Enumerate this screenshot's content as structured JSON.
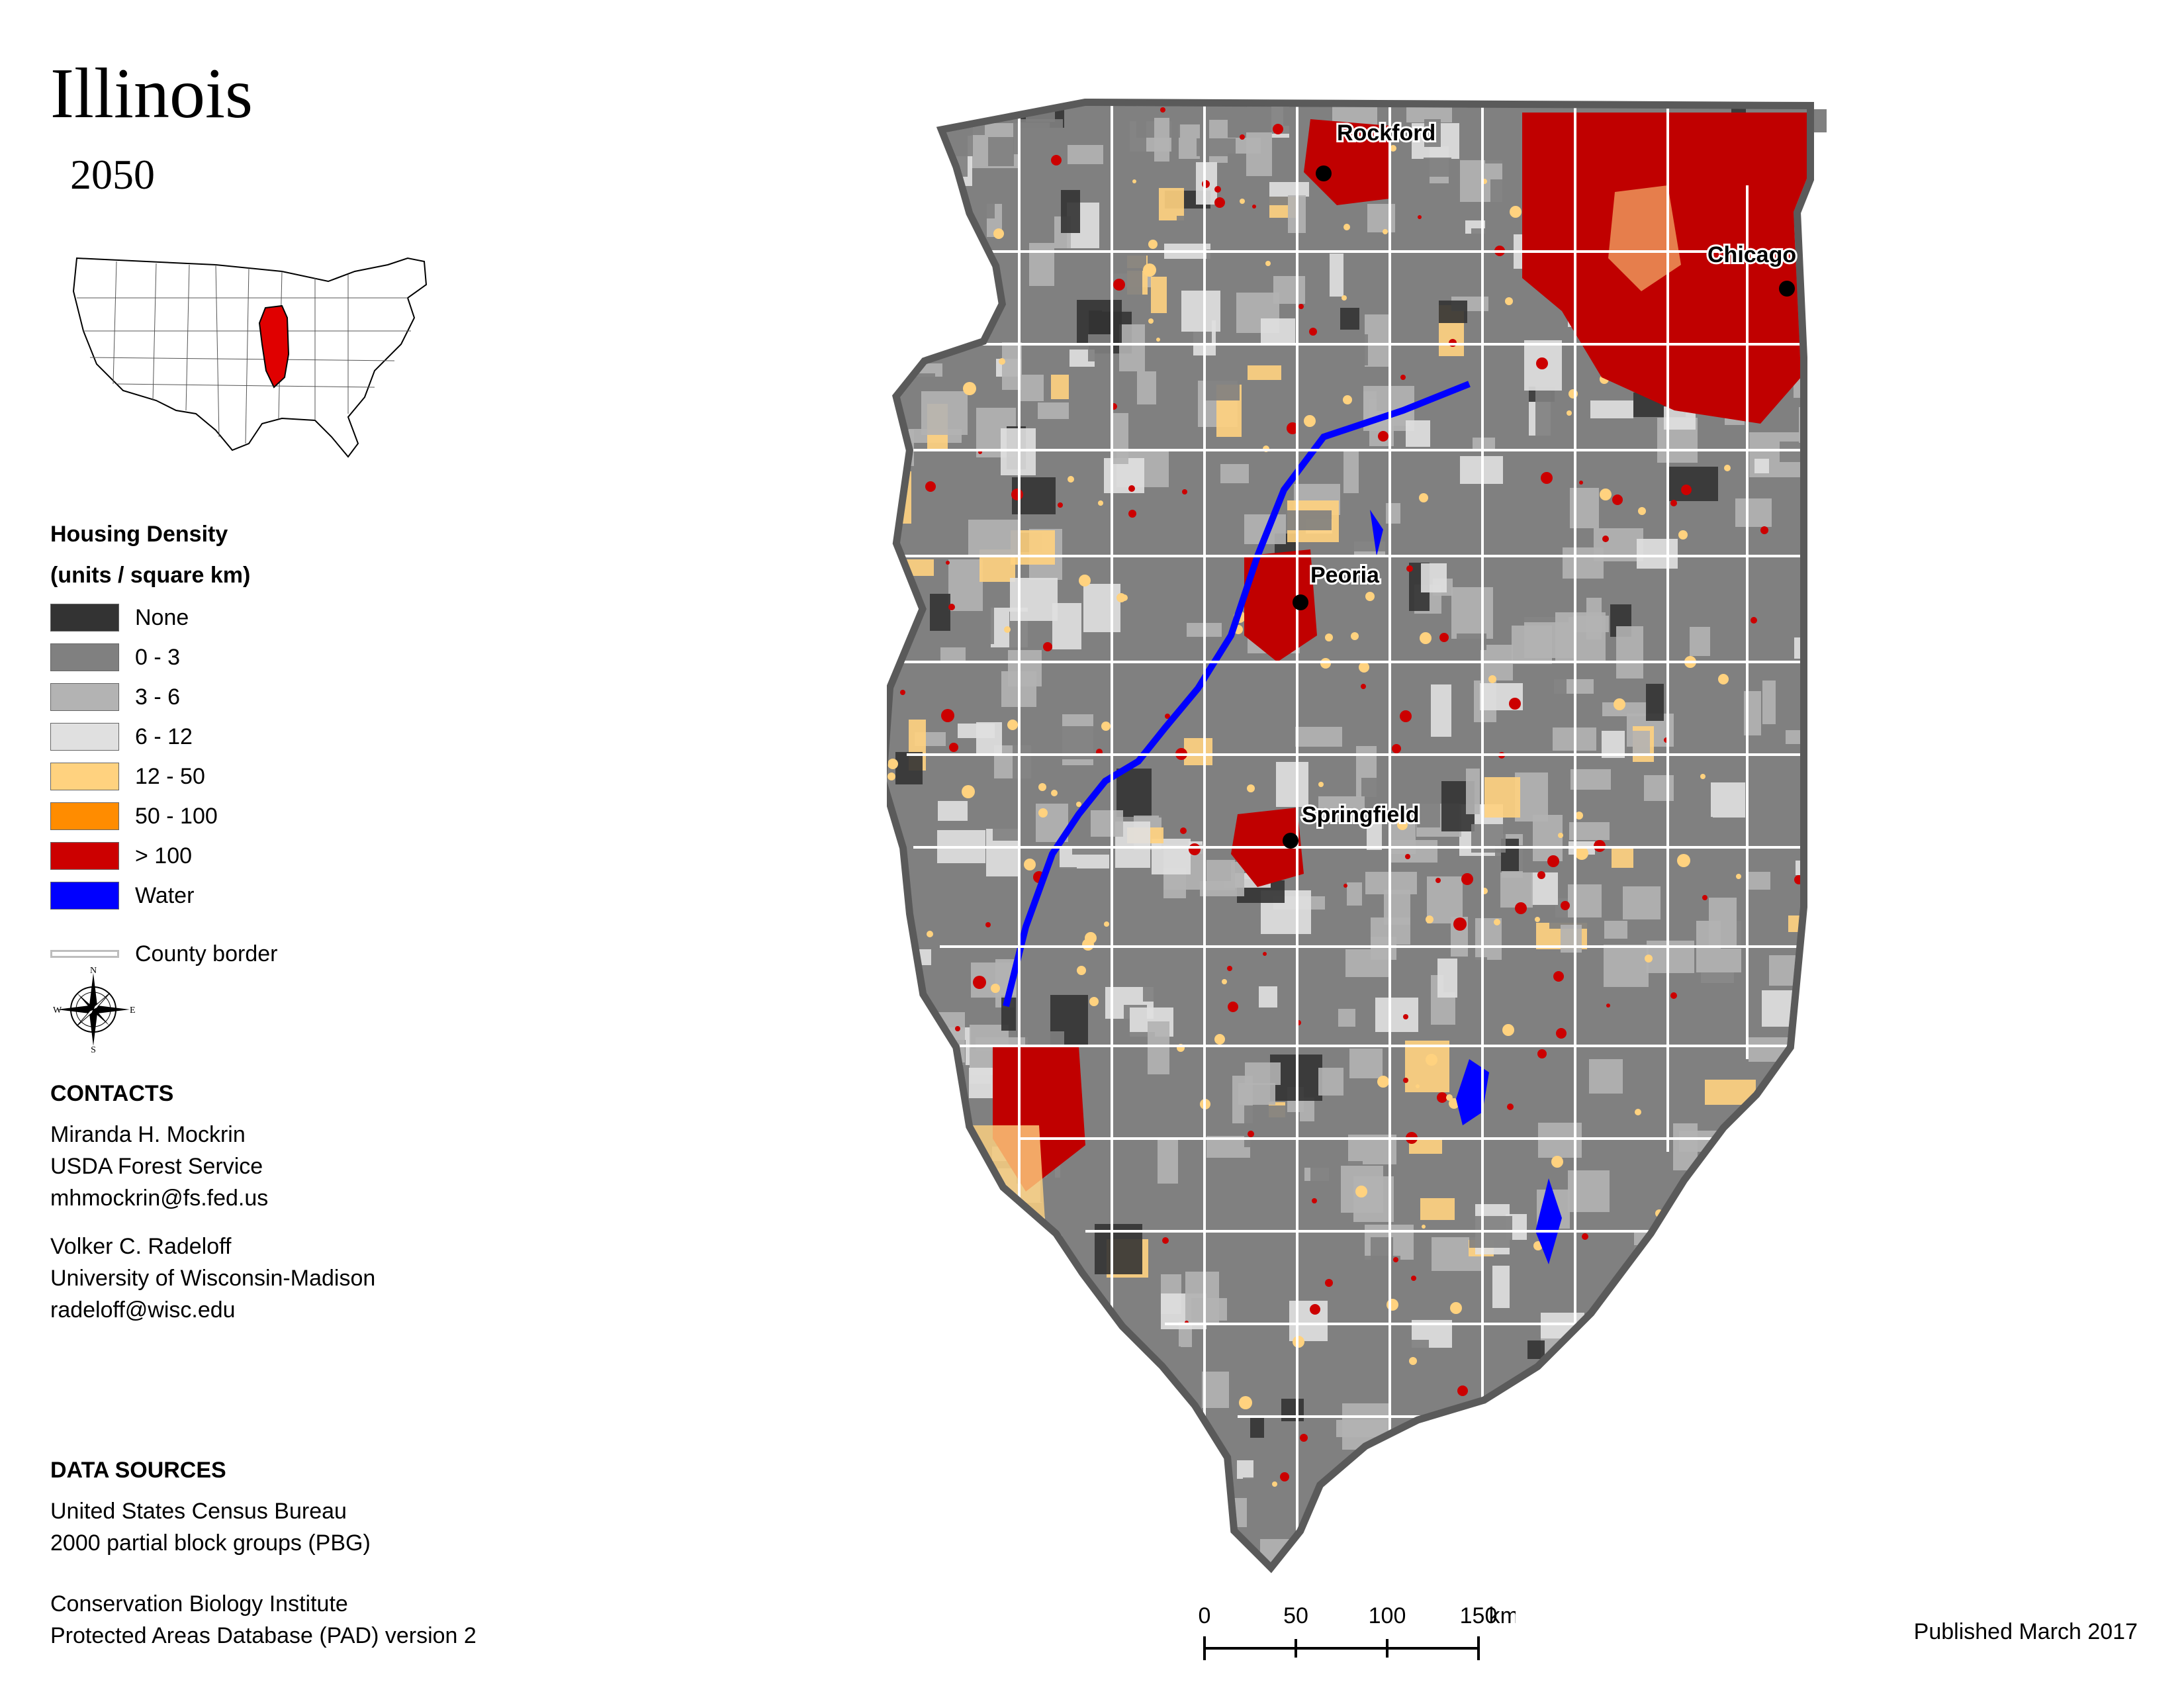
{
  "title": "Illinois",
  "subtitle": "2050",
  "legend": {
    "title_line1": "Housing Density",
    "title_line2": "(units / square km)",
    "items": [
      {
        "label": "None",
        "color": "#333333"
      },
      {
        "label": "0 - 3",
        "color": "#808080"
      },
      {
        "label": "3 - 6",
        "color": "#b3b3b3"
      },
      {
        "label": "6 - 12",
        "color": "#e0e0e0"
      },
      {
        "label": "12 - 50",
        "color": "#ffd27f"
      },
      {
        "label": "50 - 100",
        "color": "#ff8c00"
      },
      {
        "label": "> 100",
        "color": "#cc0000"
      },
      {
        "label": "Water",
        "color": "#0000ff"
      }
    ],
    "county_border_label": "County border"
  },
  "compass": {
    "n": "N",
    "s": "S",
    "e": "E",
    "w": "W",
    "icon": "compass-rose-icon"
  },
  "cities": {
    "rockford": "Rockford",
    "chicago": "Chicago",
    "peoria": "Peoria",
    "springfield": "Springfield"
  },
  "contacts": {
    "heading": "CONTACTS",
    "person1": {
      "name": "Miranda H. Mockrin",
      "org": "USDA Forest Service",
      "email": "mhmockrin@fs.fed.us"
    },
    "person2": {
      "name": "Volker C. Radeloff",
      "org": "University of Wisconsin-Madison",
      "email": "radeloff@wisc.edu"
    }
  },
  "data_sources": {
    "heading": "DATA SOURCES",
    "source1_line1": "United States Census Bureau",
    "source1_line2": "2000 partial block groups (PBG)",
    "source2_line1": "Conservation Biology Institute",
    "source2_line2": "Protected Areas Database (PAD) version 2"
  },
  "scale": {
    "ticks": [
      "0",
      "50",
      "100",
      "150"
    ],
    "unit": "km"
  },
  "published": "Published March 2017"
}
